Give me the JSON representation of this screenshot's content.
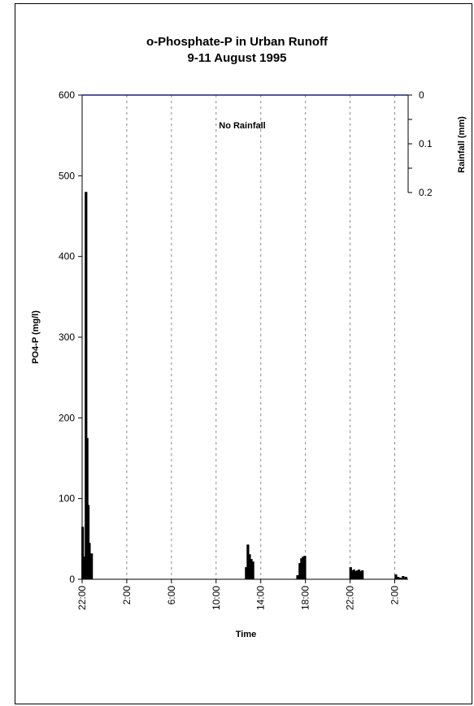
{
  "chart_data": {
    "type": "bar",
    "title": "o-Phosphate-P in Urban Runoff",
    "subtitle": "9-11 August 1995",
    "xlabel": "Time",
    "ylabel": "PO4-P (mg/l)",
    "y2label": "Rainfall (mm)",
    "annotation": "No Rainfall",
    "ylim": [
      0,
      600
    ],
    "yticks": [
      0,
      100,
      200,
      300,
      400,
      500,
      600
    ],
    "y2lim_inverted": [
      0,
      0.2
    ],
    "y2ticks": [
      "0",
      "0.1",
      "0.2"
    ],
    "x_hours_range": [
      22,
      51.2
    ],
    "xticks": [
      {
        "hours": 22,
        "label": "22:00"
      },
      {
        "hours": 26,
        "label": "2:00"
      },
      {
        "hours": 30,
        "label": "6:00"
      },
      {
        "hours": 34,
        "label": "10:00"
      },
      {
        "hours": 38,
        "label": "14:00"
      },
      {
        "hours": 42,
        "label": "18:00"
      },
      {
        "hours": 46,
        "label": "22:00"
      },
      {
        "hours": 50,
        "label": "2:00"
      }
    ],
    "grid_vertical": "dashed",
    "series": [
      {
        "name": "PO4-P",
        "color": "#000000",
        "points": [
          {
            "h": 22.05,
            "v": 65
          },
          {
            "h": 22.2,
            "v": 28
          },
          {
            "h": 22.35,
            "v": 480
          },
          {
            "h": 22.45,
            "v": 175
          },
          {
            "h": 22.55,
            "v": 92
          },
          {
            "h": 22.65,
            "v": 45
          },
          {
            "h": 22.85,
            "v": 32
          },
          {
            "h": 36.7,
            "v": 15
          },
          {
            "h": 36.85,
            "v": 43
          },
          {
            "h": 37.0,
            "v": 31
          },
          {
            "h": 37.15,
            "v": 25
          },
          {
            "h": 37.3,
            "v": 22
          },
          {
            "h": 41.3,
            "v": 5
          },
          {
            "h": 41.5,
            "v": 20
          },
          {
            "h": 41.65,
            "v": 26
          },
          {
            "h": 41.8,
            "v": 28
          },
          {
            "h": 41.95,
            "v": 29
          },
          {
            "h": 46.05,
            "v": 15
          },
          {
            "h": 46.2,
            "v": 11
          },
          {
            "h": 46.35,
            "v": 12
          },
          {
            "h": 46.5,
            "v": 10
          },
          {
            "h": 46.65,
            "v": 11
          },
          {
            "h": 46.8,
            "v": 12
          },
          {
            "h": 46.95,
            "v": 10
          },
          {
            "h": 47.1,
            "v": 11
          },
          {
            "h": 50.1,
            "v": 6
          },
          {
            "h": 50.3,
            "v": 3
          },
          {
            "h": 50.5,
            "v": 2
          },
          {
            "h": 50.75,
            "v": 4
          },
          {
            "h": 51.0,
            "v": 3
          }
        ]
      },
      {
        "name": "Rainfall",
        "color": "#1a237e",
        "points": []
      }
    ]
  }
}
